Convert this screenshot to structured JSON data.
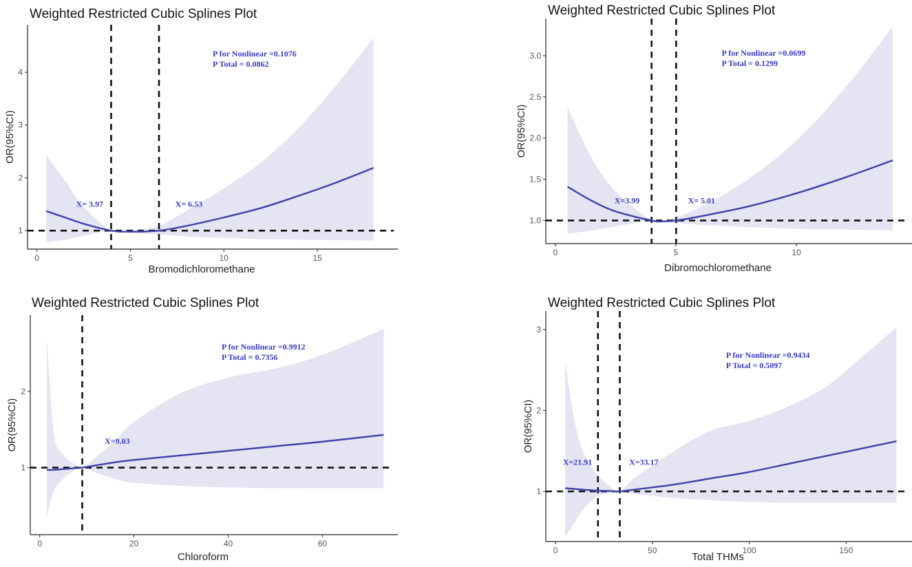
{
  "colors": {
    "line": "#3f3fa8",
    "band": "#e4e4f3",
    "annotation": "#3a3acc",
    "axis": "#222222",
    "ref": "#111111"
  },
  "chart_data": [
    {
      "type": "line",
      "title": "Weighted Restricted Cubic Splines Plot",
      "xlabel": "Bromodichloromethane",
      "ylabel": "OR(95%CI)",
      "xlim": [
        -0.5,
        19.3
      ],
      "ylim": [
        0.65,
        4.9
      ],
      "xticks": [
        0,
        5,
        10,
        15
      ],
      "yticks": [
        1,
        2,
        3,
        4
      ],
      "reference_y": 1,
      "knots": [
        3.97,
        6.53
      ],
      "x": [
        0.5,
        1.5,
        2.5,
        3.97,
        5,
        6.53,
        8,
        10,
        12,
        14,
        16,
        18
      ],
      "or": [
        1.37,
        1.25,
        1.13,
        1.0,
        0.98,
        1.0,
        1.09,
        1.25,
        1.43,
        1.66,
        1.91,
        2.19
      ],
      "lower": [
        0.78,
        0.83,
        0.9,
        1.0,
        0.96,
        0.93,
        0.89,
        0.86,
        0.84,
        0.83,
        0.82,
        0.81
      ],
      "upper": [
        2.43,
        1.95,
        1.45,
        1.0,
        1.0,
        1.09,
        1.38,
        1.8,
        2.3,
        2.95,
        3.75,
        4.65
      ],
      "annotations": [
        {
          "text": "X= 3.97",
          "x": 2.1,
          "y": 1.45
        },
        {
          "text": "X= 6.53",
          "x": 7.4,
          "y": 1.45
        }
      ],
      "stats": {
        "line1": "P for Nonlinear =0.1076",
        "line2": "P Total = 0.0862",
        "x": 9.4,
        "y": 4.3
      }
    },
    {
      "type": "line",
      "title": "Weighted Restricted Cubic Splines Plot",
      "xlabel": "Dibromochloromethane",
      "ylabel": "OR(95%CI)",
      "xlim": [
        -0.4,
        14.8
      ],
      "ylim": [
        0.72,
        3.45
      ],
      "xticks": [
        0,
        5,
        10
      ],
      "yticks": [
        1.0,
        1.5,
        2.0,
        2.5,
        3.0
      ],
      "reference_y": 1,
      "knots": [
        3.99,
        5.01
      ],
      "x": [
        0.5,
        1.5,
        2.5,
        3.99,
        4.5,
        5.01,
        6,
        8,
        10,
        12,
        14
      ],
      "or": [
        1.41,
        1.24,
        1.11,
        1.0,
        0.99,
        1.0,
        1.05,
        1.17,
        1.33,
        1.52,
        1.73
      ],
      "lower": [
        0.84,
        0.88,
        0.93,
        1.0,
        0.98,
        0.97,
        0.95,
        0.92,
        0.9,
        0.89,
        0.88
      ],
      "upper": [
        2.38,
        1.76,
        1.35,
        1.0,
        1.0,
        1.04,
        1.16,
        1.5,
        1.97,
        2.6,
        3.35
      ],
      "annotations": [
        {
          "text": "X=3.99",
          "x": 2.45,
          "y": 1.21
        },
        {
          "text": "X= 5.01",
          "x": 5.5,
          "y": 1.21
        }
      ],
      "stats": {
        "line1": "P for Nonlinear =0.0699",
        "line2": "P Total = 0.1299",
        "x": 6.9,
        "y": 3.0
      }
    },
    {
      "type": "line",
      "title": "Weighted Restricted Cubic Splines Plot",
      "xlabel": "Chloroform",
      "ylabel": "OR(95%CI)",
      "xlim": [
        -2,
        76
      ],
      "ylim": [
        0.12,
        3.0
      ],
      "xticks": [
        0,
        20,
        40,
        60
      ],
      "yticks": [
        1,
        2
      ],
      "reference_y": 1,
      "knots": [
        9.03
      ],
      "x": [
        1.5,
        3,
        5,
        7,
        9.03,
        12,
        16,
        20,
        30,
        40,
        50,
        60,
        73
      ],
      "or": [
        0.97,
        0.97,
        0.98,
        0.99,
        1.0,
        1.03,
        1.07,
        1.1,
        1.16,
        1.22,
        1.28,
        1.34,
        1.43
      ],
      "lower": [
        0.35,
        0.7,
        0.85,
        0.95,
        1.0,
        0.93,
        0.85,
        0.8,
        0.76,
        0.74,
        0.73,
        0.73,
        0.73
      ],
      "upper": [
        2.7,
        1.45,
        1.17,
        1.06,
        1.0,
        1.14,
        1.35,
        1.6,
        1.98,
        2.18,
        2.3,
        2.48,
        2.82
      ],
      "annotations": [
        {
          "text": "X=9.03",
          "x": 13.8,
          "y": 1.31
        }
      ],
      "stats": {
        "line1": "P for Nonlinear =0.9912",
        "line2": "P Total = 0.7356",
        "x": 38.6,
        "y": 2.55
      }
    },
    {
      "type": "line",
      "title": "Weighted Restricted Cubic Splines Plot",
      "xlabel": "Total THMs",
      "ylabel": "OR(95%CI)",
      "xlim": [
        -5,
        184
      ],
      "ylim": [
        0.38,
        3.23
      ],
      "xticks": [
        0,
        50,
        100,
        150
      ],
      "yticks": [
        1,
        2,
        3
      ],
      "reference_y": 1,
      "knots": [
        21.91,
        33.17
      ],
      "x": [
        5,
        10,
        15,
        21.91,
        28,
        33.17,
        40,
        60,
        80,
        100,
        120,
        140,
        160,
        176
      ],
      "or": [
        1.04,
        1.03,
        1.02,
        1.01,
        1.005,
        1.0,
        1.02,
        1.08,
        1.16,
        1.24,
        1.34,
        1.44,
        1.54,
        1.62
      ],
      "lower": [
        0.44,
        0.62,
        0.8,
        0.94,
        0.98,
        1.0,
        0.97,
        0.92,
        0.89,
        0.87,
        0.86,
        0.86,
        0.86,
        0.86
      ],
      "upper": [
        2.6,
        1.85,
        1.45,
        1.2,
        1.06,
        1.0,
        1.15,
        1.48,
        1.75,
        1.87,
        2.05,
        2.3,
        2.7,
        3.03
      ],
      "annotations": [
        {
          "text": "X=21.91",
          "x": 3.8,
          "y": 1.33
        },
        {
          "text": "X=33.17",
          "x": 38,
          "y": 1.33
        }
      ],
      "stats": {
        "line1": "P for Nonlinear =0.9434",
        "line2": "P Total = 0.5097",
        "x": 88,
        "y": 2.65
      }
    }
  ]
}
